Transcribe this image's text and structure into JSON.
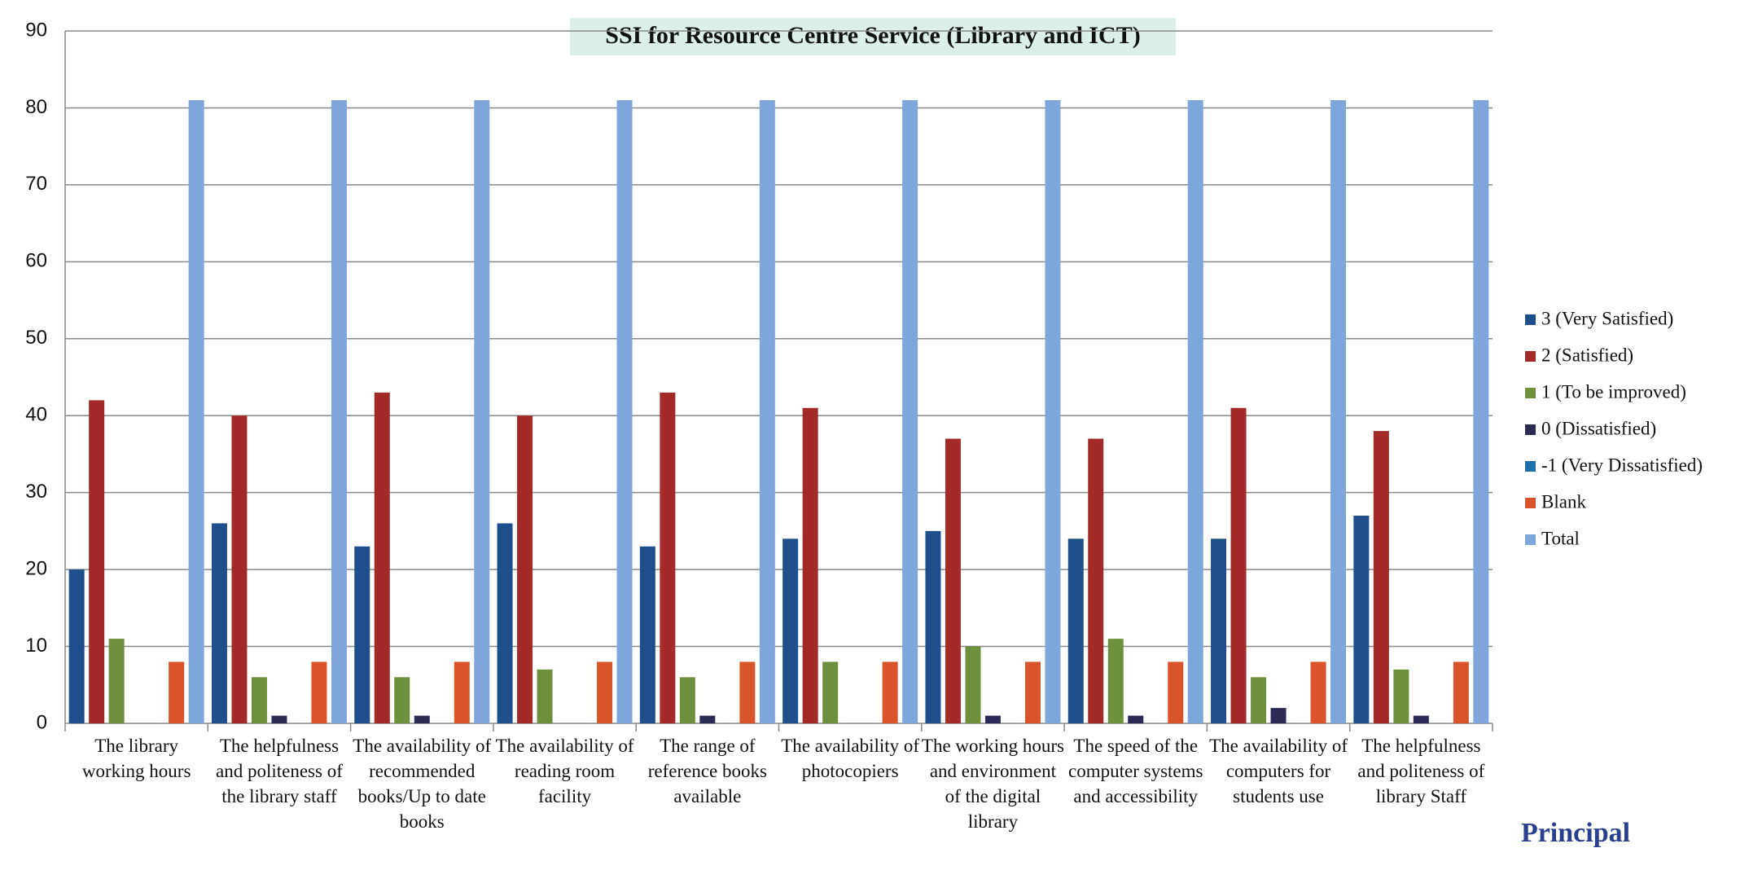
{
  "chart_data": {
    "type": "bar",
    "title": "SSI for Resource Centre Service (Library and ICT)",
    "categories": [
      "The library working hours",
      "The helpfulness and politeness of the library staff",
      "The availability of recommended books/Up to date books",
      "The availability of reading room facility",
      "The range of reference books available",
      "The availability of photocopiers",
      "The working hours and environment of the digital library",
      "The speed of the computer systems and accessibility",
      "The availability of computers for students use",
      "The helpfulness and politeness of library Staff"
    ],
    "series": [
      {
        "name": "3 (Very Satisfied)",
        "color": "#1f4e8c",
        "values": [
          20,
          26,
          23,
          26,
          23,
          24,
          25,
          24,
          24,
          27
        ]
      },
      {
        "name": "2 (Satisfied)",
        "color": "#a22b2a",
        "values": [
          42,
          40,
          43,
          40,
          43,
          41,
          37,
          37,
          41,
          38
        ]
      },
      {
        "name": "1 (To be improved)",
        "color": "#6e8f3c",
        "values": [
          11,
          6,
          6,
          7,
          6,
          8,
          10,
          11,
          6,
          7
        ]
      },
      {
        "name": "0 (Dissatisfied)",
        "color": "#2b2a55",
        "values": [
          0,
          1,
          1,
          0,
          1,
          0,
          1,
          1,
          2,
          1
        ]
      },
      {
        "name": "-1 (Very Dissatisfied)",
        "color": "#1f6fa8",
        "values": [
          0,
          0,
          0,
          0,
          0,
          0,
          0,
          0,
          0,
          0
        ]
      },
      {
        "name": "Blank",
        "color": "#d9542b",
        "values": [
          8,
          8,
          8,
          8,
          8,
          8,
          8,
          8,
          8,
          8
        ]
      },
      {
        "name": "Total",
        "color": "#7fa6dc",
        "values": [
          81,
          81,
          81,
          81,
          81,
          81,
          81,
          81,
          81,
          81
        ]
      }
    ],
    "ylim": [
      0,
      90
    ],
    "yticks": [
      0,
      10,
      20,
      30,
      40,
      50,
      60,
      70,
      80,
      90
    ],
    "grid": true,
    "legend": "right"
  },
  "signature_text": "Principal"
}
